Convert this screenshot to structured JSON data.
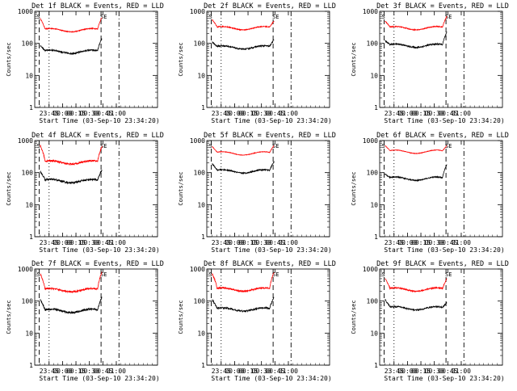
{
  "colors": {
    "events": "#000000",
    "lld": "#ff0000",
    "frame": "#000000"
  },
  "panel_grid": {
    "rows": 3,
    "cols": 3
  },
  "axis_labels": {
    "ylabel": "Counts/sec",
    "xlabel": "Start Time (03-Sep-10 23:34:20)",
    "yticks": [
      "1",
      "10",
      "100",
      "1000"
    ],
    "xticks": [
      "23:45",
      "00:00",
      "00:15",
      "00:30",
      "00:45",
      "01:00"
    ]
  },
  "chart_data": [
    {
      "type": "line",
      "title": "Det 1f BLACK = Events, RED = LLD",
      "ylim": [
        1,
        1000
      ],
      "xlim": [
        -5,
        132
      ],
      "yscale": "log",
      "series": [
        {
          "color": "#ff0000",
          "base": 260,
          "start": 600,
          "end": 650,
          "noise": 0.03
        },
        {
          "color": "#000000",
          "base": 55,
          "start": 85,
          "end": 140,
          "noise": 0.05
        }
      ]
    },
    {
      "type": "line",
      "title": "Det 2f BLACK = Events, RED = LLD",
      "ylim": [
        1,
        1000
      ],
      "xlim": [
        -5,
        132
      ],
      "yscale": "log",
      "series": [
        {
          "color": "#ff0000",
          "base": 300,
          "start": 550,
          "end": 500,
          "noise": 0.03
        },
        {
          "color": "#000000",
          "base": 75,
          "start": 110,
          "end": 130,
          "noise": 0.05
        }
      ]
    },
    {
      "type": "line",
      "title": "Det 3f BLACK = Events, RED = LLD",
      "ylim": [
        1,
        1000
      ],
      "xlim": [
        -5,
        132
      ],
      "yscale": "log",
      "series": [
        {
          "color": "#ff0000",
          "base": 300,
          "start": 500,
          "end": 700,
          "noise": 0.03
        },
        {
          "color": "#000000",
          "base": 85,
          "start": 120,
          "end": 220,
          "noise": 0.05
        }
      ]
    },
    {
      "type": "line",
      "title": "Det 4f BLACK = Events, RED = LLD",
      "ylim": [
        1,
        1000
      ],
      "xlim": [
        -5,
        132
      ],
      "yscale": "log",
      "series": [
        {
          "color": "#ff0000",
          "base": 210,
          "start": 700,
          "end": 650,
          "noise": 0.06
        },
        {
          "color": "#000000",
          "base": 55,
          "start": 110,
          "end": 120,
          "noise": 0.07
        }
      ]
    },
    {
      "type": "line",
      "title": "Det 5f BLACK = Events, RED = LLD",
      "ylim": [
        1,
        1000
      ],
      "xlim": [
        -5,
        132
      ],
      "yscale": "log",
      "series": [
        {
          "color": "#ff0000",
          "base": 400,
          "start": 650,
          "end": 700,
          "noise": 0.02
        },
        {
          "color": "#000000",
          "base": 110,
          "start": 190,
          "end": 220,
          "noise": 0.04
        }
      ]
    },
    {
      "type": "line",
      "title": "Det 6f BLACK = Events, RED = LLD",
      "ylim": [
        1,
        1000
      ],
      "xlim": [
        -5,
        132
      ],
      "yscale": "log",
      "series": [
        {
          "color": "#ff0000",
          "base": 450,
          "start": 700,
          "end": 700,
          "noise": 0.02
        },
        {
          "color": "#000000",
          "base": 65,
          "start": 90,
          "end": 180,
          "noise": 0.04
        }
      ]
    },
    {
      "type": "line",
      "title": "Det 7f BLACK = Events, RED = LLD",
      "ylim": [
        1,
        1000
      ],
      "xlim": [
        -5,
        132
      ],
      "yscale": "log",
      "series": [
        {
          "color": "#ff0000",
          "base": 220,
          "start": 700,
          "end": 800,
          "noise": 0.06
        },
        {
          "color": "#000000",
          "base": 50,
          "start": 110,
          "end": 130,
          "noise": 0.07
        }
      ]
    },
    {
      "type": "line",
      "title": "Det 8f BLACK = Events, RED = LLD",
      "ylim": [
        1,
        1000
      ],
      "xlim": [
        -5,
        132
      ],
      "yscale": "log",
      "series": [
        {
          "color": "#ff0000",
          "base": 230,
          "start": 700,
          "end": 800,
          "noise": 0.05
        },
        {
          "color": "#000000",
          "base": 55,
          "start": 110,
          "end": 130,
          "noise": 0.06
        }
      ]
    },
    {
      "type": "line",
      "title": "Det 9f BLACK = Events, RED = LLD",
      "ylim": [
        1,
        1000
      ],
      "xlim": [
        -5,
        132
      ],
      "yscale": "log",
      "series": [
        {
          "color": "#ff0000",
          "base": 230,
          "start": 500,
          "end": 500,
          "noise": 0.04
        },
        {
          "color": "#000000",
          "base": 60,
          "start": 110,
          "end": 90,
          "noise": 0.05
        }
      ]
    }
  ],
  "time_markers": {
    "dashed": [
      0,
      69
    ],
    "dotted": [
      11
    ],
    "dashdot": [
      89
    ]
  }
}
